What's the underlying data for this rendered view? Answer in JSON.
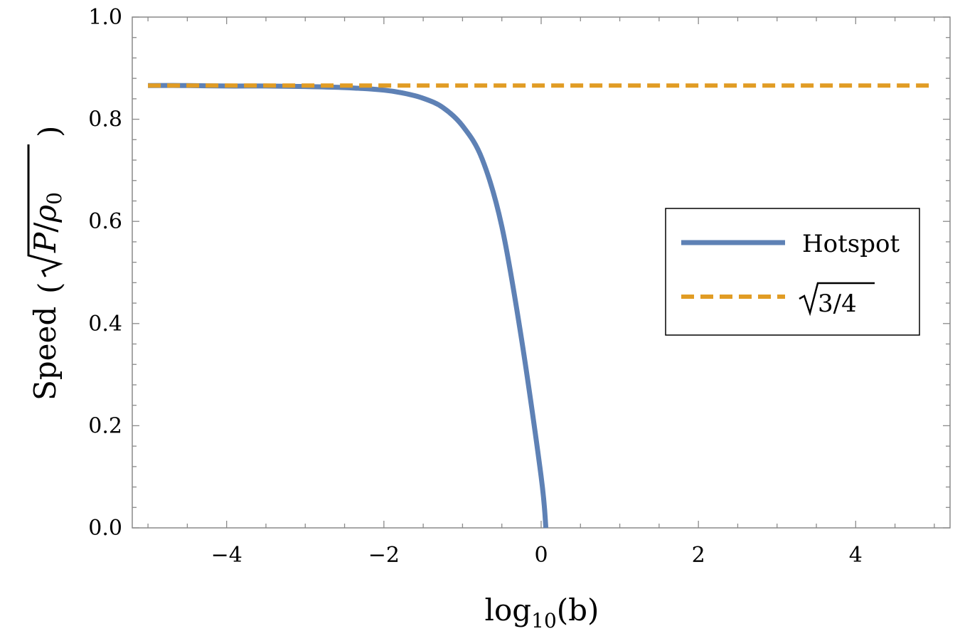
{
  "chart_data": {
    "type": "line",
    "title": "",
    "xlabel": {
      "base": "log",
      "subscript": "10",
      "argument": "(b)"
    },
    "ylabel": {
      "word": "Speed",
      "radicand_numerator": "P",
      "radicand_slash": "/",
      "radicand_denominator": "ρ",
      "radicand_denominator_subscript": "0"
    },
    "xlim": [
      -5.2,
      5.2
    ],
    "ylim": [
      0,
      1.0
    ],
    "x_major_ticks": [
      -4,
      -2,
      0,
      2,
      4
    ],
    "x_tick_labels": [
      "−4",
      "−2",
      "0",
      "2",
      "4"
    ],
    "y_major_ticks": [
      0.0,
      0.2,
      0.4,
      0.6,
      0.8,
      1.0
    ],
    "y_tick_labels": [
      "0.0",
      "0.2",
      "0.4",
      "0.6",
      "0.8",
      "1.0"
    ],
    "grid": false,
    "legend_position": "right",
    "series": [
      {
        "name": "Hotspot",
        "style": "solid",
        "color": "#5e81b5",
        "x": [
          -5.0,
          -4.5,
          -4.0,
          -3.5,
          -3.0,
          -2.5,
          -2.0,
          -1.75,
          -1.5,
          -1.25,
          -1.0,
          -0.75,
          -0.5,
          -0.25,
          0.0,
          0.06
        ],
        "y": [
          0.866,
          0.866,
          0.865,
          0.865,
          0.864,
          0.862,
          0.857,
          0.851,
          0.841,
          0.823,
          0.787,
          0.722,
          0.59,
          0.37,
          0.1,
          0.0
        ]
      },
      {
        "name": "√3/4",
        "style": "dashed",
        "color": "#e19c24",
        "legend_radicand": "3/4",
        "x": [
          -5.0,
          5.0
        ],
        "y": [
          0.866,
          0.866
        ]
      }
    ]
  }
}
